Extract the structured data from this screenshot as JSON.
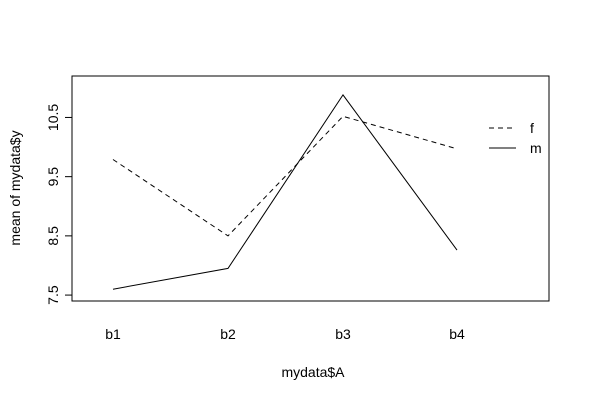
{
  "chart_data": {
    "type": "line",
    "title": "",
    "xlabel": "mydata$A",
    "ylabel": "mean of  mydata$y",
    "categories": [
      "b1",
      "b2",
      "b3",
      "b4"
    ],
    "yticks": [
      "7.5",
      "8.5",
      "9.5",
      "10.5"
    ],
    "ylim": [
      7.4,
      11.2
    ],
    "grid": false,
    "legend_position": "right",
    "series": [
      {
        "name": "f",
        "line_style": "dashed",
        "color": "#000000",
        "values": [
          9.79,
          8.5,
          10.52,
          9.97
        ]
      },
      {
        "name": "m",
        "line_style": "solid",
        "color": "#000000",
        "values": [
          7.6,
          7.95,
          10.88,
          8.26
        ]
      }
    ]
  }
}
